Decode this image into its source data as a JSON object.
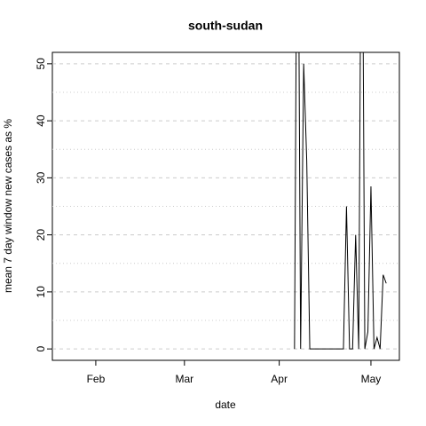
{
  "chart_data": {
    "type": "line",
    "title": "south-sudan",
    "x_label": "date",
    "y_label": "mean  7  day window new cases as %",
    "x": [
      97,
      98,
      99,
      100,
      101,
      102,
      103,
      104,
      105,
      106,
      107,
      108,
      109,
      110,
      111,
      112,
      113,
      114,
      115,
      116,
      117,
      118,
      119,
      120,
      121,
      122,
      123,
      124,
      125,
      126,
      127
    ],
    "series": [
      {
        "name": "south-sudan",
        "color": "#000000",
        "values": [
          0,
          100,
          0,
          50,
          33,
          0,
          0,
          0,
          0,
          0,
          0,
          0,
          0,
          0,
          0,
          0,
          0,
          25,
          0,
          0,
          20,
          0,
          100,
          0,
          3,
          28.5,
          0,
          2,
          0,
          13,
          11.5
        ]
      }
    ],
    "xlim": [
      17.8,
      131.3
    ],
    "xticks": [
      {
        "value": 32,
        "label": "Feb"
      },
      {
        "value": 61,
        "label": "Mar"
      },
      {
        "value": 92,
        "label": "Apr"
      },
      {
        "value": 122,
        "label": "May"
      }
    ],
    "ylim": [
      -2,
      52
    ],
    "yticks": [
      0,
      10,
      20,
      30,
      40,
      50
    ],
    "minor_grid": [
      5,
      15,
      25,
      35,
      45
    ],
    "grid": true
  }
}
